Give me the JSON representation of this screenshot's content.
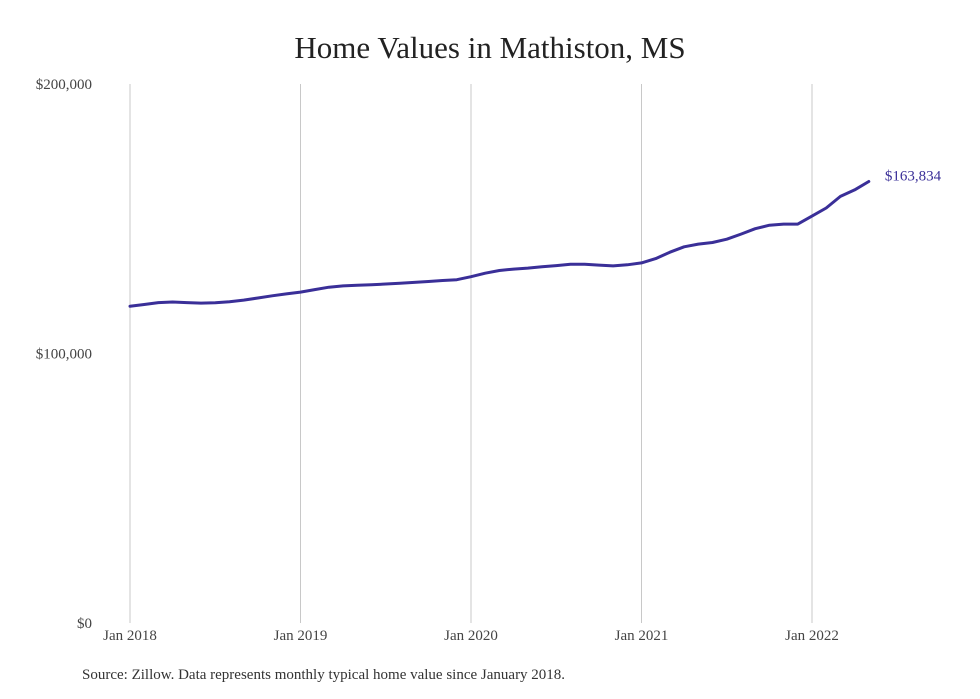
{
  "chart_data": {
    "type": "line",
    "title": "Home Values in Mathiston, MS",
    "xlabel": "",
    "ylabel": "",
    "ylim": [
      0,
      200000
    ],
    "y_ticks": [
      {
        "value": 0,
        "label": "$0"
      },
      {
        "value": 100000,
        "label": "$100,000"
      },
      {
        "value": 200000,
        "label": "$200,000"
      }
    ],
    "x_ticks": [
      "Jan 2018",
      "Jan 2019",
      "Jan 2020",
      "Jan 2021",
      "Jan 2022"
    ],
    "grid": "vertical",
    "line_color": "#3a2f98",
    "end_label": "$163,834",
    "series": [
      {
        "x": [
          "2018-01",
          "2018-02",
          "2018-03",
          "2018-04",
          "2018-05",
          "2018-06",
          "2018-07",
          "2018-08",
          "2018-09",
          "2018-10",
          "2018-11",
          "2018-12",
          "2019-01",
          "2019-02",
          "2019-03",
          "2019-04",
          "2019-05",
          "2019-06",
          "2019-07",
          "2019-08",
          "2019-09",
          "2019-10",
          "2019-11",
          "2019-12",
          "2020-01",
          "2020-02",
          "2020-03",
          "2020-04",
          "2020-05",
          "2020-06",
          "2020-07",
          "2020-08",
          "2020-09",
          "2020-10",
          "2020-11",
          "2020-12",
          "2021-01",
          "2021-02",
          "2021-03",
          "2021-04",
          "2021-05",
          "2021-06",
          "2021-07",
          "2021-08",
          "2021-09",
          "2021-10",
          "2021-11",
          "2021-12",
          "2022-01",
          "2022-02",
          "2022-03",
          "2022-04",
          "2022-05"
        ],
        "values": [
          117500,
          118200,
          118900,
          119100,
          118900,
          118700,
          118800,
          119200,
          119800,
          120600,
          121400,
          122100,
          122800,
          123700,
          124600,
          125100,
          125300,
          125500,
          125800,
          126100,
          126400,
          126700,
          127100,
          127400,
          128500,
          129800,
          130800,
          131300,
          131700,
          132200,
          132600,
          133100,
          133100,
          132800,
          132500,
          132900,
          133600,
          135200,
          137600,
          139600,
          140600,
          141200,
          142400,
          144300,
          146300,
          147600,
          148000,
          148000,
          151000,
          154000,
          158300,
          160700,
          163834
        ]
      }
    ]
  },
  "source_note": "Source: Zillow. Data represents monthly typical home value since January 2018."
}
